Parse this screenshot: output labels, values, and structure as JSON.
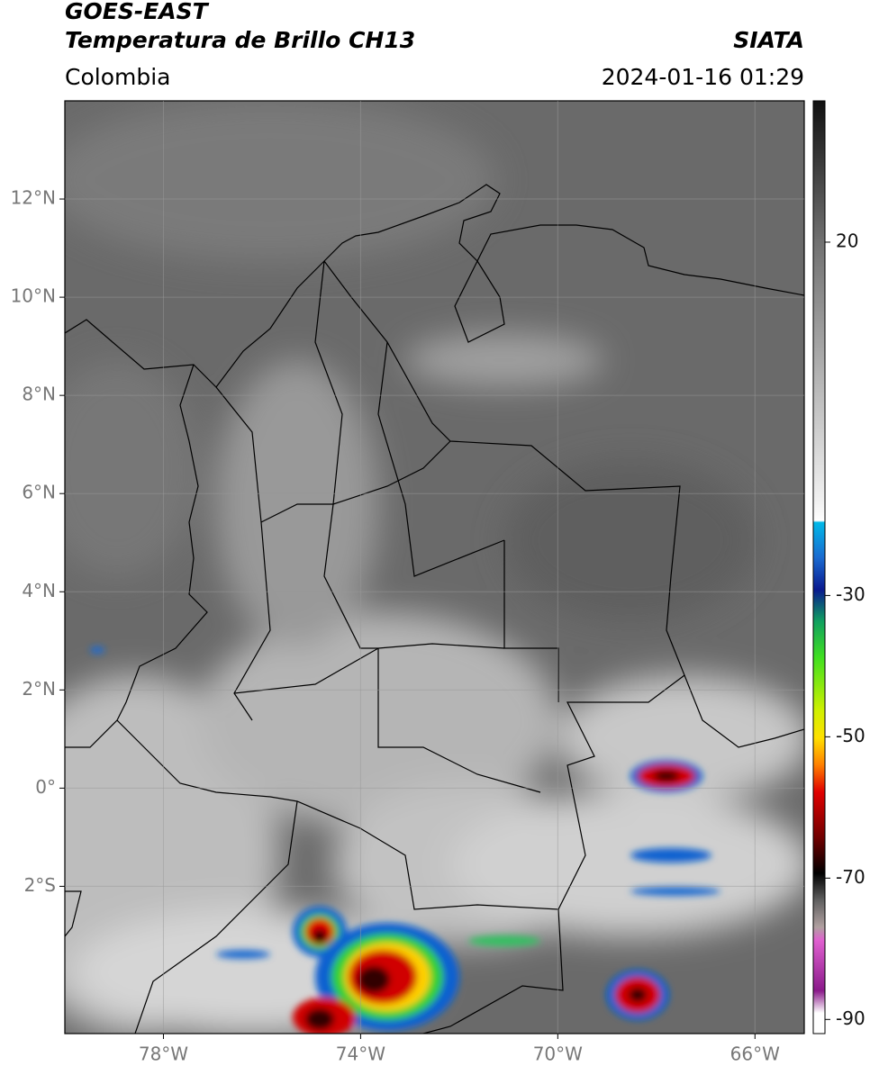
{
  "header": {
    "satellite": "GOES-EAST",
    "product": "Temperatura de Brillo CH13",
    "region": "Colombia",
    "source": "SIATA",
    "datetime": "2024-01-16 01:29"
  },
  "map": {
    "xlim": [
      -80,
      -65
    ],
    "ylim": [
      -5,
      14
    ],
    "grid": true,
    "xticks": [
      {
        "value": -78,
        "label": "78°W"
      },
      {
        "value": -74,
        "label": "74°W"
      },
      {
        "value": -70,
        "label": "70°W"
      },
      {
        "value": -66,
        "label": "66°W"
      }
    ],
    "yticks": [
      {
        "value": 12,
        "label": "12°N"
      },
      {
        "value": 10,
        "label": "10°N"
      },
      {
        "value": 8,
        "label": "8°N"
      },
      {
        "value": 6,
        "label": "6°N"
      },
      {
        "value": 4,
        "label": "4°N"
      },
      {
        "value": 2,
        "label": "2°N"
      },
      {
        "value": 0,
        "label": "0°"
      },
      {
        "value": -2,
        "label": "2°S"
      }
    ]
  },
  "colorbar": {
    "lim": [
      -92,
      40
    ],
    "ticks": [
      20,
      -30,
      -50,
      -70,
      -90
    ]
  }
}
